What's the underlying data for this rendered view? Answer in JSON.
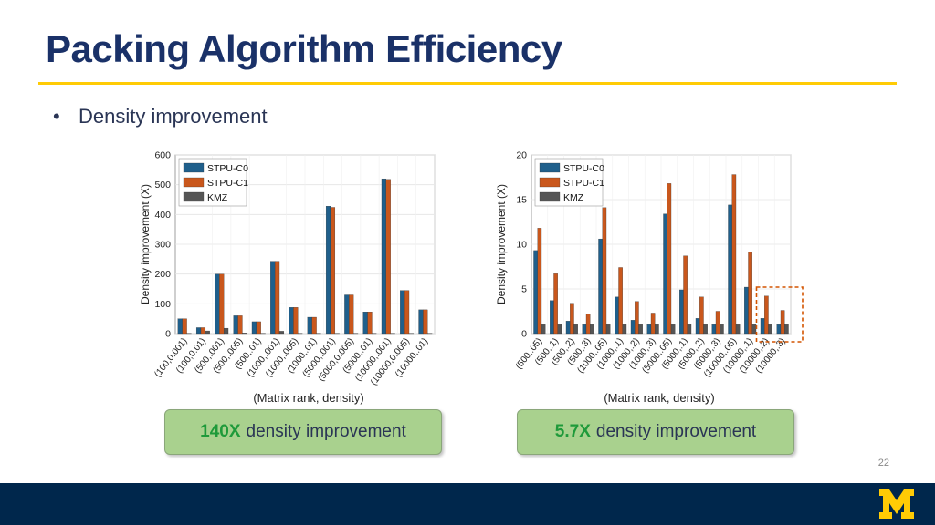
{
  "slide": {
    "title": "Packing Algorithm Efficiency",
    "bullet_marker": "•",
    "bullet": "Density improvement",
    "page_number": "22",
    "logo_text": "M"
  },
  "colors": {
    "stpu_c0": "#1f5f8b",
    "stpu_c1": "#c9571c",
    "kmz": "#555555",
    "title": "#1a3168",
    "accent_rule": "#ffcb05",
    "footer": "#00274c",
    "callout_bg": "#a9d18e",
    "highlight_box": "#d35400"
  },
  "callouts": [
    {
      "highlight": "140X",
      "text": "density improvement"
    },
    {
      "highlight": "5.7X",
      "text": "density improvement"
    }
  ],
  "chart_data": [
    {
      "type": "bar",
      "title": "",
      "xlabel": "(Matrix rank, density)",
      "ylabel": "Density improvement (X)",
      "ylim": [
        0,
        600
      ],
      "yticks": [
        0,
        100,
        200,
        300,
        400,
        500,
        600
      ],
      "grid": true,
      "legend_position": "top-left",
      "categories": [
        "(100,0.001)",
        "(100,0.01)",
        "(500,.001)",
        "(500,.005)",
        "(500,.01)",
        "(1000,.001)",
        "(1000,.005)",
        "(1000,.01)",
        "(5000,.001)",
        "(5000,0.005)",
        "(5000,.01)",
        "(10000,.001)",
        "(10000,0.005)",
        "(10000,.01)"
      ],
      "series": [
        {
          "name": "STPU-C0",
          "values": [
            50,
            20,
            200,
            60,
            40,
            243,
            88,
            55,
            428,
            130,
            73,
            520,
            145,
            80
          ]
        },
        {
          "name": "STPU-C1",
          "values": [
            50,
            20,
            200,
            60,
            40,
            243,
            88,
            55,
            424,
            130,
            73,
            518,
            145,
            80
          ]
        },
        {
          "name": "KMZ",
          "values": [
            1,
            9,
            18,
            2,
            1,
            8,
            1,
            1,
            1,
            1,
            1,
            1,
            1,
            1
          ]
        }
      ]
    },
    {
      "type": "bar",
      "title": "",
      "xlabel": "(Matrix rank, density)",
      "ylabel": "Density improvement (X)",
      "ylim": [
        0,
        20
      ],
      "yticks": [
        0,
        5,
        10,
        15,
        20
      ],
      "grid": true,
      "legend_position": "top-left",
      "categories": [
        "(500,.05)",
        "(500,.1)",
        "(500,.2)",
        "(500,.3)",
        "(1000,.05)",
        "(1000,.1)",
        "(1000,.2)",
        "(1000,.3)",
        "(5000,.05)",
        "(5000,.1)",
        "(5000,.2)",
        "(5000,.3)",
        "(10000,.05)",
        "(10000,.1)",
        "(10000,.2)",
        "(10000,.3)"
      ],
      "series": [
        {
          "name": "STPU-C0",
          "values": [
            9.3,
            3.7,
            1.4,
            1,
            10.6,
            4.1,
            1.5,
            1,
            13.4,
            4.9,
            1.7,
            1,
            14.4,
            5.2,
            1.7,
            1
          ]
        },
        {
          "name": "STPU-C1",
          "values": [
            11.8,
            6.7,
            3.4,
            2.2,
            14.1,
            7.4,
            3.6,
            2.3,
            16.8,
            8.7,
            4.1,
            2.5,
            17.8,
            9.1,
            4.2,
            2.6
          ]
        },
        {
          "name": "KMZ",
          "values": [
            1,
            1,
            1,
            1,
            1,
            1,
            1,
            1,
            1,
            1,
            1,
            1,
            1,
            1,
            1,
            1
          ]
        }
      ],
      "annotation": "dashed box around (10000,.2) and (10000,.3)"
    }
  ]
}
